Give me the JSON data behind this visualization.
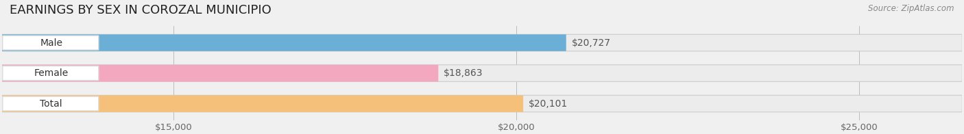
{
  "title": "EARNINGS BY SEX IN COROZAL MUNICIPIO",
  "source": "Source: ZipAtlas.com",
  "categories": [
    "Male",
    "Female",
    "Total"
  ],
  "values": [
    20727,
    18863,
    20101
  ],
  "bar_colors": [
    "#6baed6",
    "#f4a8c0",
    "#f5c07a"
  ],
  "label_colors": [
    "#6baed6",
    "#f4a8c0",
    "#f5c07a"
  ],
  "value_labels": [
    "$20,727",
    "$18,863",
    "$20,101"
  ],
  "xmin": 12500,
  "xmax": 26500,
  "xticks": [
    15000,
    20000,
    25000
  ],
  "xtick_labels": [
    "$15,000",
    "$20,000",
    "$25,000"
  ],
  "bar_height": 0.55,
  "background_color": "#f0f0f0",
  "bar_bg_color": "#e8e8e8",
  "title_fontsize": 13,
  "label_fontsize": 10,
  "tick_fontsize": 9.5,
  "source_fontsize": 8.5
}
